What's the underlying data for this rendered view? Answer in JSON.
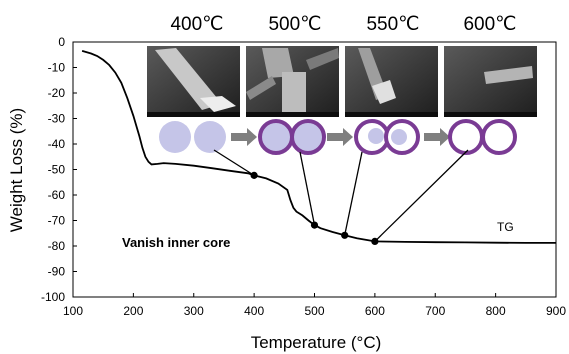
{
  "chart_data": {
    "type": "line",
    "xlabel": "Temperature (°C)",
    "ylabel": "Weight Loss (%)",
    "xlim": [
      100,
      900
    ],
    "ylim": [
      -100,
      0
    ],
    "x_ticks": [
      100,
      200,
      300,
      400,
      500,
      600,
      700,
      800,
      900
    ],
    "y_ticks": [
      0,
      -10,
      -20,
      -30,
      -40,
      -50,
      -60,
      -70,
      -80,
      -90,
      -100
    ],
    "series": [
      {
        "name": "TG",
        "x": [
          115,
          130,
          140,
          150,
          160,
          170,
          180,
          190,
          200,
          210,
          215,
          220,
          225,
          230,
          240,
          250,
          270,
          300,
          330,
          360,
          390,
          400,
          420,
          440,
          455,
          460,
          465,
          470,
          480,
          490,
          500,
          510,
          530,
          550,
          570,
          600,
          650,
          700,
          750,
          800,
          850,
          900
        ],
        "y": [
          -3.5,
          -4.5,
          -5.5,
          -7,
          -9,
          -12,
          -16,
          -22,
          -29,
          -37,
          -41.5,
          -45,
          -47,
          -48,
          -47.8,
          -47.5,
          -47.8,
          -48.5,
          -49.5,
          -50.5,
          -51.5,
          -52.3,
          -53.5,
          -55.5,
          -58,
          -62,
          -65,
          -66.5,
          -68,
          -70,
          -71.8,
          -73,
          -74.5,
          -75.8,
          -77,
          -78.2,
          -78.4,
          -78.5,
          -78.6,
          -78.7,
          -78.8,
          -78.8
        ]
      }
    ],
    "highlight_points": [
      {
        "x": 400,
        "y": -52.3
      },
      {
        "x": 500,
        "y": -71.8
      },
      {
        "x": 550,
        "y": -75.8
      },
      {
        "x": 600,
        "y": -78.2
      }
    ],
    "temperature_labels": [
      "400℃",
      "500℃",
      "550℃",
      "600℃"
    ],
    "annotations": {
      "series_label": "TG",
      "core_note": "Vanish inner core"
    },
    "grid": false,
    "colors": {
      "line": "#000000",
      "circle_fill": "#c5c5e8",
      "ring": "#7a3b94",
      "arrow": "#7f7f7f"
    }
  }
}
